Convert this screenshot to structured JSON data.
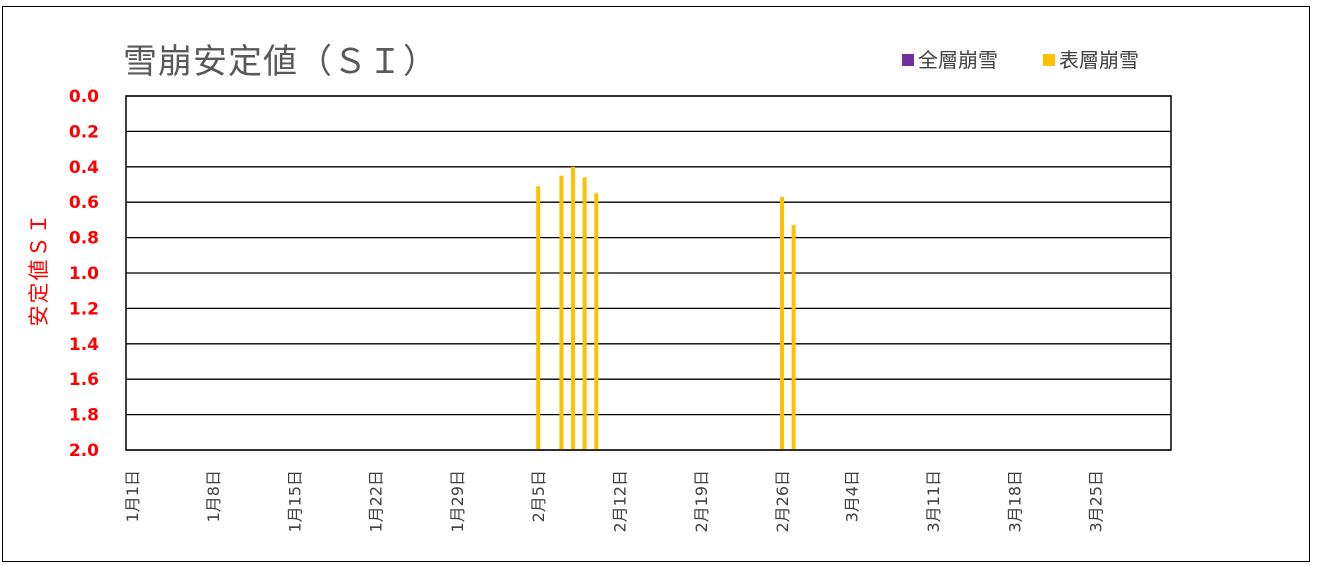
{
  "chart_data": {
    "type": "bar",
    "title": "雪崩安定値（ＳＩ）",
    "ylabel": "安定値ＳＩ",
    "xlabel": "",
    "ylim": [
      0.0,
      2.0
    ],
    "y_inverted": true,
    "yticks": [
      "0.0",
      "0.2",
      "0.4",
      "0.6",
      "0.8",
      "1.0",
      "1.2",
      "1.4",
      "1.6",
      "1.8",
      "2.0"
    ],
    "x_range": [
      "1月1日",
      "3月31日"
    ],
    "x_tick_labels": [
      "1月1日",
      "1月8日",
      "1月15日",
      "1月22日",
      "1月29日",
      "2月5日",
      "2月12日",
      "2月19日",
      "2月26日",
      "3月4日",
      "3月11日",
      "3月18日",
      "3月25日"
    ],
    "grid": true,
    "legend_position": "top-right",
    "series": [
      {
        "name": "全層崩雪",
        "color": "#7030a0",
        "points": []
      },
      {
        "name": "表層崩雪",
        "color": "#ffc000",
        "points": [
          {
            "x": "2月5日",
            "y": 0.51
          },
          {
            "x": "2月7日",
            "y": 0.45
          },
          {
            "x": "2月8日",
            "y": 0.4
          },
          {
            "x": "2月9日",
            "y": 0.46
          },
          {
            "x": "2月10日",
            "y": 0.55
          },
          {
            "x": "2月26日",
            "y": 0.57
          },
          {
            "x": "2月27日",
            "y": 0.73
          }
        ]
      }
    ]
  }
}
